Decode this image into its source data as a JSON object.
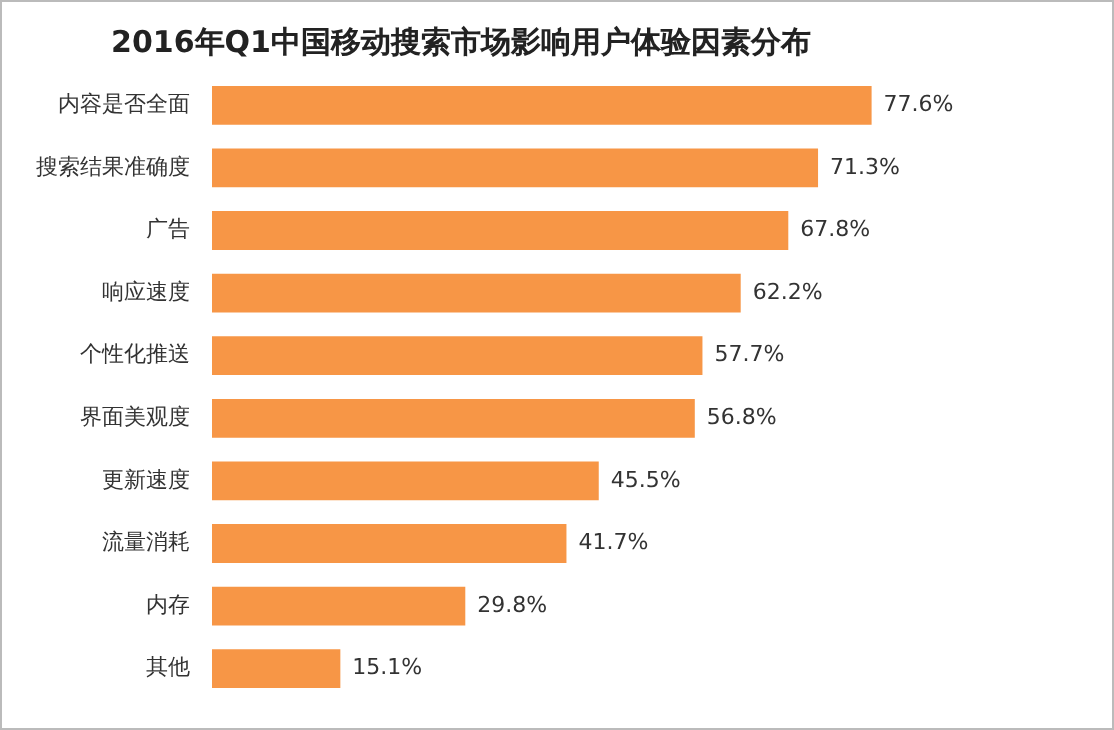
{
  "chart_data": {
    "type": "bar",
    "orientation": "horizontal",
    "title": "2016年Q1中国移动搜索市场影响用户体验因素分布",
    "categories": [
      "内容是否全面",
      "搜索结果准确度",
      "广告",
      "响应速度",
      "个性化推送",
      "界面美观度",
      "更新速度",
      "流量消耗",
      "内存",
      "其他"
    ],
    "values": [
      77.6,
      71.3,
      67.8,
      62.2,
      57.7,
      56.8,
      45.5,
      41.7,
      29.8,
      15.1
    ],
    "value_labels": [
      "77.6%",
      "71.3%",
      "67.8%",
      "62.2%",
      "57.7%",
      "56.8%",
      "45.5%",
      "41.7%",
      "29.8%",
      "15.1%"
    ],
    "color": "#f79646"
  }
}
